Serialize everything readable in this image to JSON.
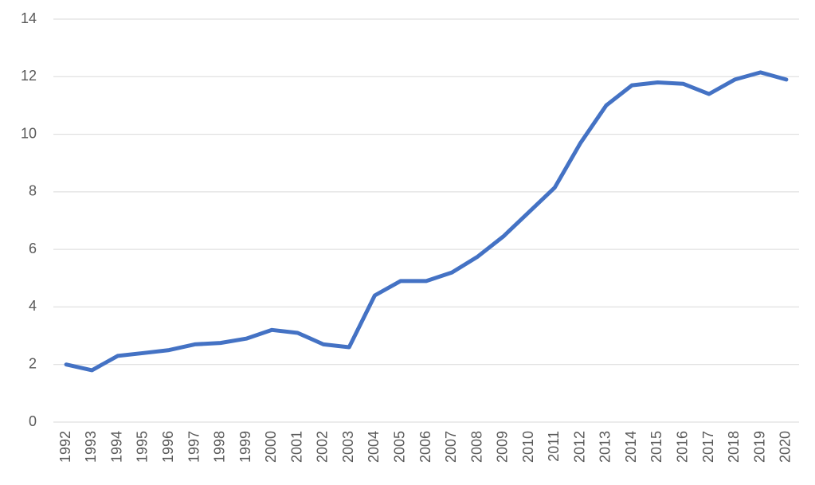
{
  "chart_data": {
    "type": "line",
    "categories": [
      "1992",
      "1993",
      "1994",
      "1995",
      "1996",
      "1997",
      "1998",
      "1999",
      "2000",
      "2001",
      "2002",
      "2003",
      "2004",
      "2005",
      "2006",
      "2007",
      "2008",
      "2009",
      "2010",
      "2011",
      "2012",
      "2013",
      "2014",
      "2015",
      "2016",
      "2017",
      "2018",
      "2019",
      "2020"
    ],
    "values": [
      2.0,
      1.8,
      2.3,
      2.4,
      2.5,
      2.7,
      2.75,
      2.9,
      3.2,
      3.1,
      2.7,
      2.6,
      4.4,
      4.9,
      4.9,
      5.2,
      5.75,
      6.45,
      7.3,
      8.15,
      9.7,
      11.0,
      11.7,
      11.8,
      11.75,
      11.4,
      11.9,
      12.15,
      11.9
    ],
    "color": "#4472c4",
    "ylim": [
      0,
      14
    ],
    "yticks": [
      0,
      2,
      4,
      6,
      8,
      10,
      12,
      14
    ],
    "grid": true
  }
}
